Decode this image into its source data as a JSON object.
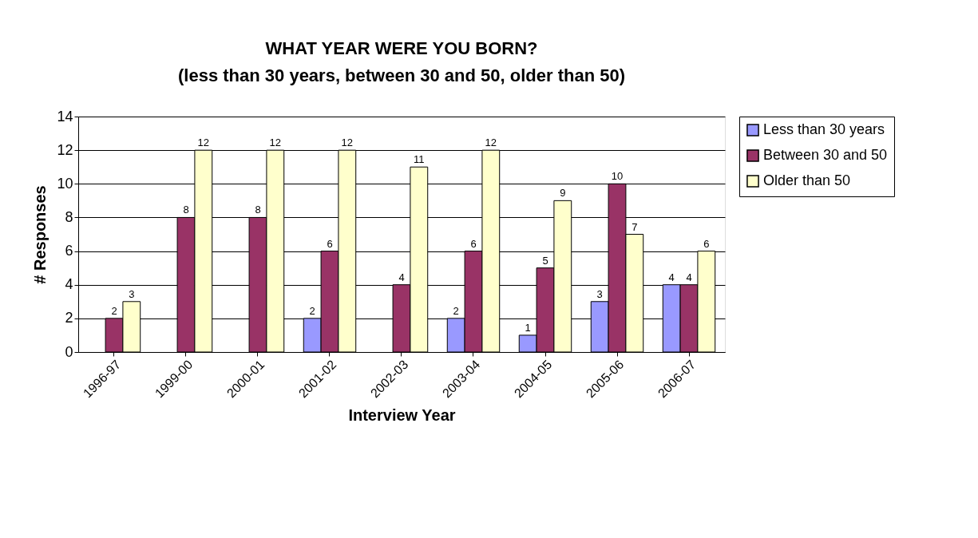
{
  "chart_data": {
    "type": "bar",
    "title": "WHAT YEAR WERE YOU BORN?",
    "subtitle": "(less than 30 years, between 30 and 50, older than 50)",
    "xlabel": "Interview Year",
    "ylabel": "# Responses",
    "categories": [
      "1996-97",
      "1999-00",
      "2000-01",
      "2001-02",
      "2002-03",
      "2003-04",
      "2004-05",
      "2005-06",
      "2006-07"
    ],
    "series": [
      {
        "name": "Less than 30 years",
        "color": "#9999ff",
        "values": [
          null,
          null,
          null,
          2,
          null,
          2,
          1,
          3,
          4
        ]
      },
      {
        "name": "Between 30 and 50",
        "color": "#993366",
        "values": [
          2,
          8,
          8,
          6,
          4,
          6,
          5,
          10,
          4
        ]
      },
      {
        "name": "Older than 50",
        "color": "#ffffcc",
        "values": [
          3,
          12,
          12,
          12,
          11,
          12,
          9,
          7,
          6
        ]
      }
    ],
    "ylim": [
      0,
      14
    ],
    "yticks": [
      0,
      2,
      4,
      6,
      8,
      10,
      12,
      14
    ],
    "grid": "y",
    "legend": "right",
    "data_labels": true
  }
}
